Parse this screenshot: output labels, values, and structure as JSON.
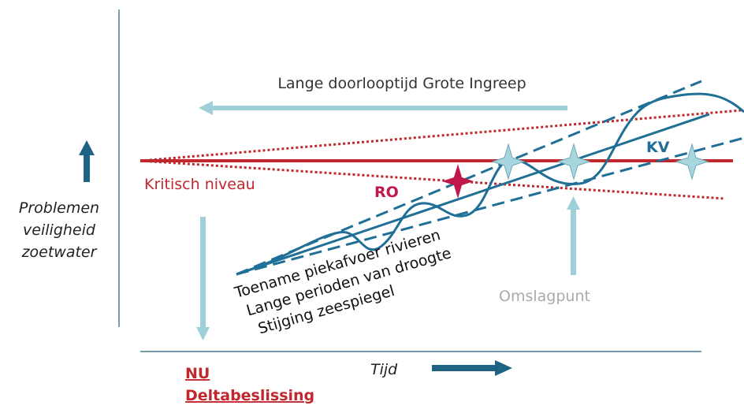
{
  "arrow_label": "Lange doorlooptijd Grote Ingreep",
  "kv_label": "KV",
  "critical_label": "Kritisch niveau",
  "ro_label": "RO",
  "y_axis_label": [
    "Problemen",
    "veiligheid",
    "zoetwater"
  ],
  "drivers": [
    "Toename piekafvoer rivieren",
    "Lange perioden van droogte",
    "Stijging zeespiegel"
  ],
  "tipping_point_label": "Omslagpunt",
  "now_label": [
    "NU",
    "Deltabeslissing"
  ],
  "x_axis_label": "Tijd"
}
